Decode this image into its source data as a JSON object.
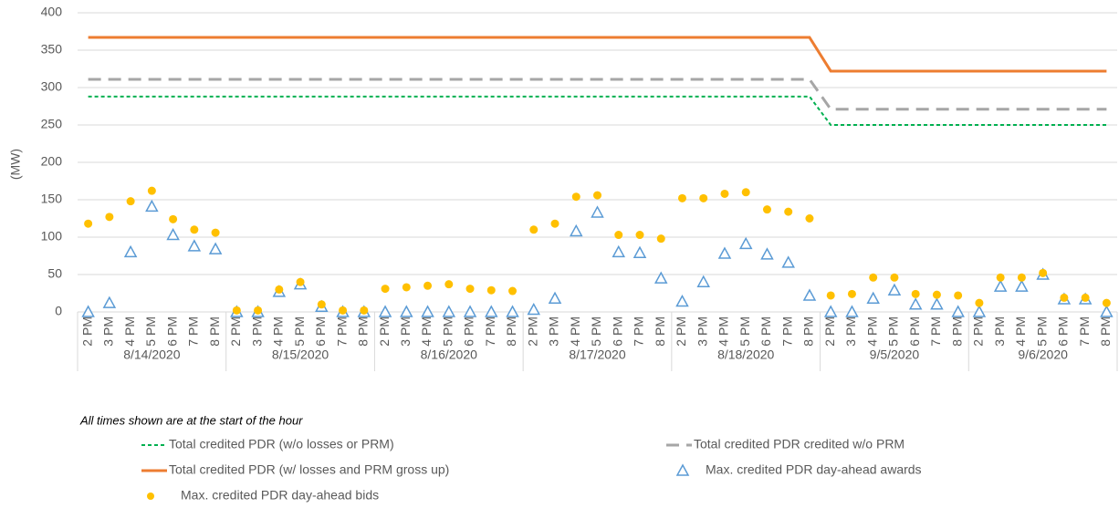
{
  "chart_data": {
    "type": "line_scatter",
    "y_label": "(MW)",
    "note": "All times shown are at the start of the hour",
    "categories": [
      "2 PM",
      "3 PM",
      "4 PM",
      "5 PM",
      "6 PM",
      "7 PM",
      "8 PM",
      "2 PM",
      "3 PM",
      "4 PM",
      "5 PM",
      "6 PM",
      "7 PM",
      "8 PM",
      "2 PM",
      "3 PM",
      "4 PM",
      "5 PM",
      "6 PM",
      "7 PM",
      "8 PM",
      "2 PM",
      "3 PM",
      "4 PM",
      "5 PM",
      "6 PM",
      "7 PM",
      "8 PM",
      "2 PM",
      "3 PM",
      "4 PM",
      "5 PM",
      "6 PM",
      "7 PM",
      "8 PM",
      "2 PM",
      "3 PM",
      "4 PM",
      "5 PM",
      "6 PM",
      "7 PM",
      "8 PM",
      "2 PM",
      "3 PM",
      "4 PM",
      "5 PM",
      "6 PM",
      "7 PM",
      "8 PM"
    ],
    "groups": [
      "8/14/2020",
      "8/15/2020",
      "8/16/2020",
      "8/17/2020",
      "8/18/2020",
      "9/5/2020",
      "9/6/2020"
    ],
    "ylim": [
      0,
      400
    ],
    "yticks": [
      0,
      50,
      100,
      150,
      200,
      250,
      300,
      350,
      400
    ],
    "grid": true,
    "series": [
      {
        "name": "Total credited PDR (w/o losses or PRM)",
        "color": "#00b050",
        "marker": "line",
        "dash": "4,3",
        "width": 2,
        "values": [
          288,
          288,
          288,
          288,
          288,
          288,
          288,
          288,
          288,
          288,
          288,
          288,
          288,
          288,
          288,
          288,
          288,
          288,
          288,
          288,
          288,
          288,
          288,
          288,
          288,
          288,
          288,
          288,
          288,
          288,
          288,
          288,
          288,
          288,
          288,
          250,
          250,
          250,
          250,
          250,
          250,
          250,
          250,
          250,
          250,
          250,
          250,
          250,
          250
        ]
      },
      {
        "name": "Total credited PDR credited w/o PRM",
        "color": "#a6a6a6",
        "marker": "line",
        "dash": "14,8",
        "width": 3,
        "values": [
          311,
          311,
          311,
          311,
          311,
          311,
          311,
          311,
          311,
          311,
          311,
          311,
          311,
          311,
          311,
          311,
          311,
          311,
          311,
          311,
          311,
          311,
          311,
          311,
          311,
          311,
          311,
          311,
          311,
          311,
          311,
          311,
          311,
          311,
          311,
          271,
          271,
          271,
          271,
          271,
          271,
          271,
          271,
          271,
          271,
          271,
          271,
          271,
          271
        ]
      },
      {
        "name": "Total credited PDR (w/ losses and PRM gross up)",
        "color": "#ed7d31",
        "marker": "line",
        "dash": "none",
        "width": 3,
        "values": [
          367,
          367,
          367,
          367,
          367,
          367,
          367,
          367,
          367,
          367,
          367,
          367,
          367,
          367,
          367,
          367,
          367,
          367,
          367,
          367,
          367,
          367,
          367,
          367,
          367,
          367,
          367,
          367,
          367,
          367,
          367,
          367,
          367,
          367,
          367,
          322,
          322,
          322,
          322,
          322,
          322,
          322,
          322,
          322,
          322,
          322,
          322,
          322,
          322
        ]
      },
      {
        "name": "Max. credited PDR day-ahead awards",
        "color": "#5b9bd5",
        "marker": "triangle",
        "values": [
          0,
          12,
          80,
          141,
          103,
          88,
          84,
          0,
          0,
          27,
          37,
          7,
          0,
          0,
          0,
          0,
          0,
          0,
          0,
          0,
          0,
          3,
          18,
          108,
          133,
          80,
          79,
          45,
          14,
          40,
          78,
          91,
          77,
          66,
          22,
          0,
          0,
          18,
          29,
          10,
          10,
          0,
          0,
          34,
          34,
          50,
          17,
          17,
          0
        ]
      },
      {
        "name": "Max. credited PDR day-ahead bids",
        "color": "#ffc000",
        "marker": "circle",
        "values": [
          118,
          127,
          148,
          162,
          124,
          110,
          106,
          2,
          2,
          30,
          40,
          10,
          2,
          2,
          31,
          33,
          35,
          37,
          31,
          29,
          28,
          110,
          118,
          154,
          156,
          103,
          103,
          98,
          152,
          152,
          158,
          160,
          137,
          134,
          125,
          22,
          24,
          46,
          46,
          24,
          23,
          22,
          12,
          46,
          46,
          52,
          19,
          19,
          12
        ]
      }
    ]
  }
}
